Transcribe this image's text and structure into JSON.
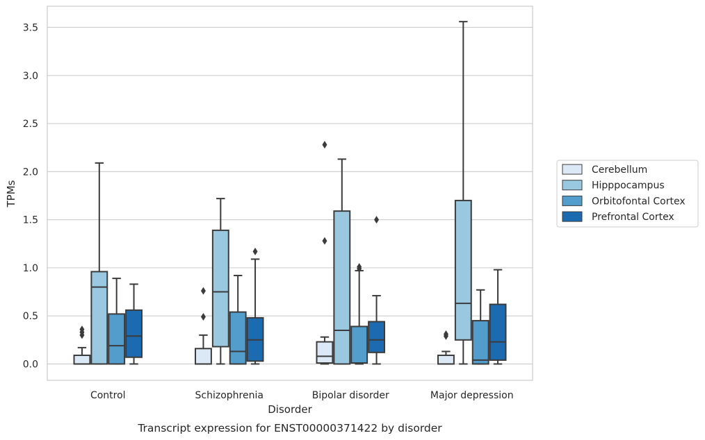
{
  "chart_data": {
    "type": "box",
    "xlabel": "Disorder",
    "ylabel": "TPMs",
    "caption": "Transcript expression for ENST00000371422 by disorder",
    "ylim": [
      -0.17,
      3.72
    ],
    "yticks": [
      "0.0",
      "0.5",
      "1.0",
      "1.5",
      "2.0",
      "2.5",
      "3.0",
      "3.5"
    ],
    "grid": "horizontal",
    "legend_position": "right",
    "categories": [
      "Control",
      "Schizophrenia",
      "Bipolar disorder",
      "Major depression"
    ],
    "series": [
      {
        "name": "Cerebellum",
        "color": "#dbe9f6",
        "boxes": [
          {
            "whislo": 0.0,
            "q1": 0.0,
            "med": 0.0,
            "q3": 0.09,
            "whishi": 0.17,
            "fliers": [
              0.3,
              0.33,
              0.36
            ]
          },
          {
            "whislo": 0.0,
            "q1": 0.0,
            "med": 0.0,
            "q3": 0.16,
            "whishi": 0.3,
            "fliers": [
              0.49,
              0.76
            ]
          },
          {
            "whislo": 0.0,
            "q1": 0.01,
            "med": 0.08,
            "q3": 0.23,
            "whishi": 0.28,
            "fliers": [
              1.28,
              2.28
            ]
          },
          {
            "whislo": 0.0,
            "q1": 0.0,
            "med": 0.0,
            "q3": 0.09,
            "whishi": 0.13,
            "fliers": [
              0.29,
              0.31
            ]
          }
        ]
      },
      {
        "name": "Hipppocampus",
        "color": "#9ac8e0",
        "boxes": [
          {
            "whislo": 0.0,
            "q1": 0.0,
            "med": 0.8,
            "q3": 0.96,
            "whishi": 2.09,
            "fliers": []
          },
          {
            "whislo": 0.0,
            "q1": 0.18,
            "med": 0.75,
            "q3": 1.39,
            "whishi": 1.72,
            "fliers": []
          },
          {
            "whislo": 0.0,
            "q1": 0.0,
            "med": 0.35,
            "q3": 1.59,
            "whishi": 2.13,
            "fliers": []
          },
          {
            "whislo": 0.0,
            "q1": 0.25,
            "med": 0.63,
            "q3": 1.7,
            "whishi": 3.56,
            "fliers": []
          }
        ]
      },
      {
        "name": "Orbitofontal Cortex",
        "color": "#529dcc",
        "boxes": [
          {
            "whislo": 0.0,
            "q1": 0.0,
            "med": 0.19,
            "q3": 0.52,
            "whishi": 0.89,
            "fliers": []
          },
          {
            "whislo": 0.0,
            "q1": 0.0,
            "med": 0.13,
            "q3": 0.54,
            "whishi": 0.92,
            "fliers": []
          },
          {
            "whislo": 0.0,
            "q1": 0.01,
            "med": 0.01,
            "q3": 0.39,
            "whishi": 0.97,
            "fliers": [
              0.99,
              1.01
            ]
          },
          {
            "whislo": 0.0,
            "q1": 0.0,
            "med": 0.04,
            "q3": 0.45,
            "whishi": 0.77,
            "fliers": []
          }
        ]
      },
      {
        "name": "Prefrontal Cortex",
        "color": "#1c6aaf",
        "boxes": [
          {
            "whislo": 0.0,
            "q1": 0.07,
            "med": 0.29,
            "q3": 0.56,
            "whishi": 0.83,
            "fliers": []
          },
          {
            "whislo": 0.0,
            "q1": 0.03,
            "med": 0.25,
            "q3": 0.48,
            "whishi": 1.09,
            "fliers": [
              1.17
            ]
          },
          {
            "whislo": 0.0,
            "q1": 0.12,
            "med": 0.25,
            "q3": 0.44,
            "whishi": 0.71,
            "fliers": [
              1.5
            ]
          },
          {
            "whislo": 0.0,
            "q1": 0.04,
            "med": 0.23,
            "q3": 0.62,
            "whishi": 0.98,
            "fliers": []
          }
        ]
      }
    ]
  }
}
